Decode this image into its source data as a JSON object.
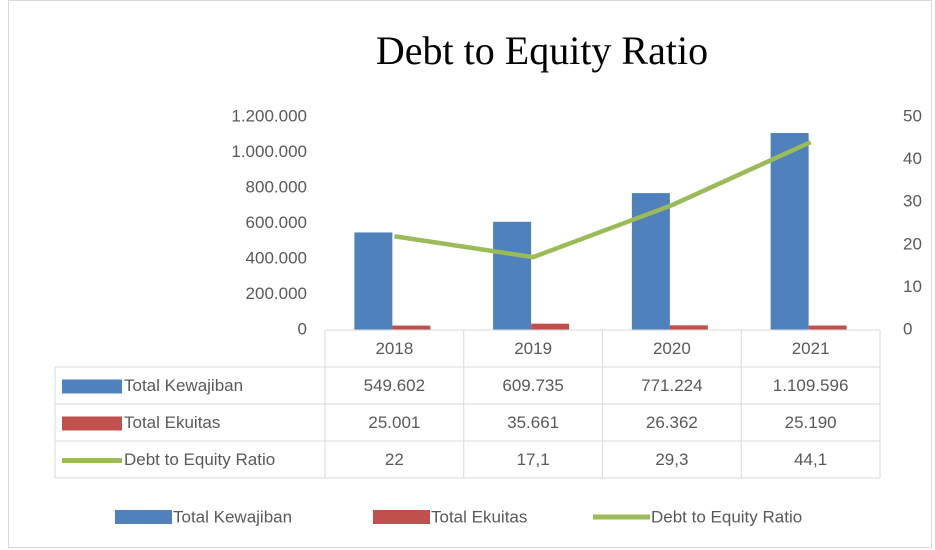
{
  "chart_data": {
    "type": "bar",
    "title": "Debt to Equity Ratio",
    "categories": [
      "2018",
      "2019",
      "2020",
      "2021"
    ],
    "series": [
      {
        "name": "Total Kewajiban",
        "color": "#4f81bd",
        "values": [
          549602,
          609735,
          771224,
          1109596
        ],
        "value_labels": [
          "549.602",
          "609.735",
          "771.224",
          "1.109.596"
        ]
      },
      {
        "name": "Total Ekuitas",
        "color": "#c0504d",
        "values": [
          25001,
          35661,
          26362,
          25190
        ],
        "value_labels": [
          "25.001",
          "35.661",
          "26.362",
          "25.190"
        ]
      },
      {
        "name": "Debt to Equity Ratio",
        "color": "#9bbb59",
        "type": "line",
        "axis": "y2",
        "values": [
          22,
          17.1,
          29.3,
          44.1
        ],
        "value_labels": [
          "22",
          "17,1",
          "29,3",
          "44,1"
        ]
      }
    ],
    "ylim": [
      0,
      1200000
    ],
    "yticks": [
      0,
      {
        "value": 200000,
        "label": "200.000"
      },
      {
        "value": 400000,
        "label": "400.000"
      },
      {
        "value": 600000,
        "label": "600.000"
      },
      {
        "value": 800000,
        "label": "800.000"
      },
      {
        "value": 1000000,
        "label": "1.000.000"
      },
      {
        "value": 1200000,
        "label": "1.200.000"
      }
    ],
    "y2lim": [
      0,
      50
    ],
    "y2ticks": [
      0,
      10,
      20,
      30,
      40,
      50
    ],
    "grid": false,
    "legend": "bottom"
  }
}
